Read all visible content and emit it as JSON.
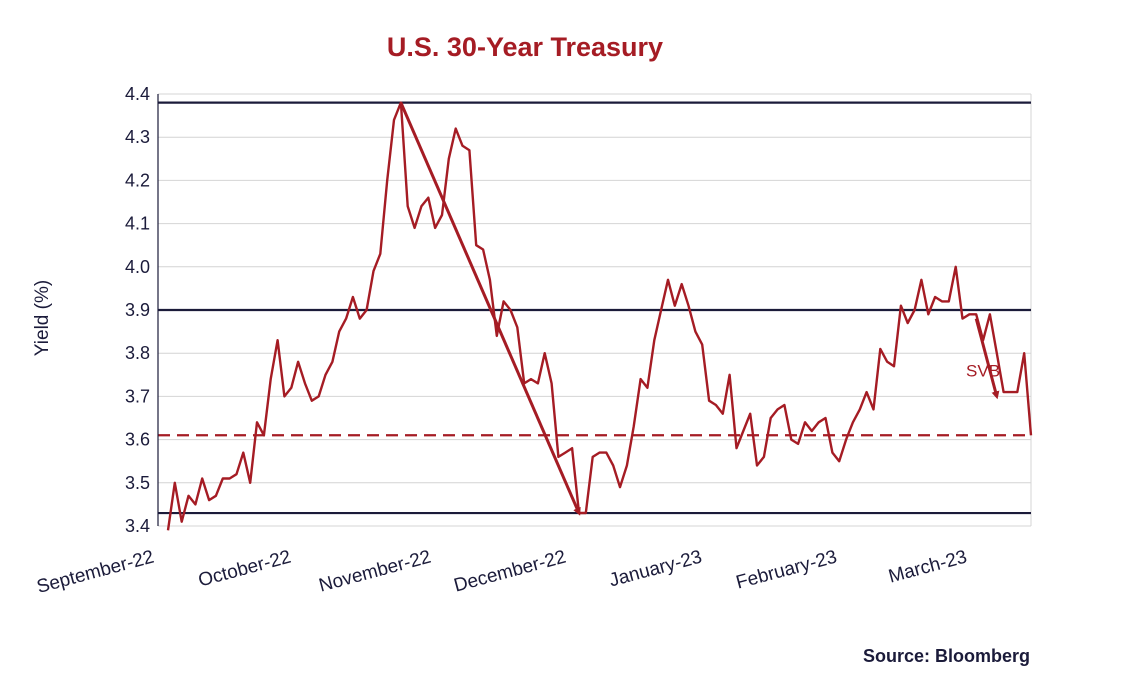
{
  "chart_data": {
    "type": "line",
    "title": "U.S. 30-Year Treasury",
    "xlabel": "",
    "ylabel": "Yield (%)",
    "ylim": [
      3.4,
      4.4
    ],
    "yticks": [
      "3.4",
      "3.5",
      "3.6",
      "3.7",
      "3.8",
      "3.9",
      "4.0",
      "4.1",
      "4.2",
      "4.3",
      "4.4"
    ],
    "xticks": [
      "September-22",
      "October-22",
      "November-22",
      "December-22",
      "January-23",
      "February-23",
      "March-23"
    ],
    "grid": true,
    "legend": "none",
    "series": [
      {
        "color": "#a51c24",
        "values": [
          3.39,
          3.5,
          3.41,
          3.47,
          3.45,
          3.51,
          3.46,
          3.47,
          3.51,
          3.51,
          3.52,
          3.57,
          3.5,
          3.64,
          3.61,
          3.74,
          3.83,
          3.7,
          3.72,
          3.78,
          3.73,
          3.69,
          3.7,
          3.75,
          3.78,
          3.85,
          3.88,
          3.93,
          3.88,
          3.9,
          3.99,
          4.03,
          4.2,
          4.34,
          4.38,
          4.14,
          4.09,
          4.14,
          4.16,
          4.09,
          4.12,
          4.25,
          4.32,
          4.28,
          4.27,
          4.05,
          4.04,
          3.97,
          3.84,
          3.92,
          3.9,
          3.86,
          3.73,
          3.74,
          3.73,
          3.8,
          3.73,
          3.56,
          3.57,
          3.58,
          3.43,
          3.43,
          3.56,
          3.57,
          3.57,
          3.54,
          3.49,
          3.54,
          3.63,
          3.74,
          3.72,
          3.83,
          3.9,
          3.97,
          3.91,
          3.96,
          3.91,
          3.85,
          3.82,
          3.69,
          3.68,
          3.66,
          3.75,
          3.58,
          3.62,
          3.66,
          3.54,
          3.56,
          3.65,
          3.67,
          3.68,
          3.6,
          3.59,
          3.64,
          3.62,
          3.64,
          3.65,
          3.57,
          3.55,
          3.6,
          3.64,
          3.67,
          3.71,
          3.67,
          3.81,
          3.78,
          3.77,
          3.91,
          3.87,
          3.9,
          3.97,
          3.89,
          3.93,
          3.92,
          3.92,
          4.0,
          3.88,
          3.89,
          3.89,
          3.83,
          3.89,
          3.8,
          3.71,
          3.71,
          3.71,
          3.8,
          3.61
        ]
      }
    ],
    "reference_lines": [
      {
        "value": 4.38,
        "style": "solid",
        "color": "#1b1b3a"
      },
      {
        "value": 3.9,
        "style": "solid",
        "color": "#1b1b3a"
      },
      {
        "value": 3.43,
        "style": "solid",
        "color": "#1b1b3a"
      },
      {
        "value": 3.61,
        "style": "dashed",
        "color": "#a51c24"
      }
    ],
    "trend_arrows": [
      {
        "from": [
          34,
          4.38
        ],
        "to": [
          60,
          3.43
        ]
      },
      {
        "from": [
          118,
          3.88
        ],
        "to": [
          121,
          3.7
        ]
      }
    ],
    "annotations": [
      {
        "text": "SVB",
        "x": 119,
        "y": 3.76,
        "color": "#a51c24"
      }
    ],
    "source": "Source: Bloomberg"
  }
}
